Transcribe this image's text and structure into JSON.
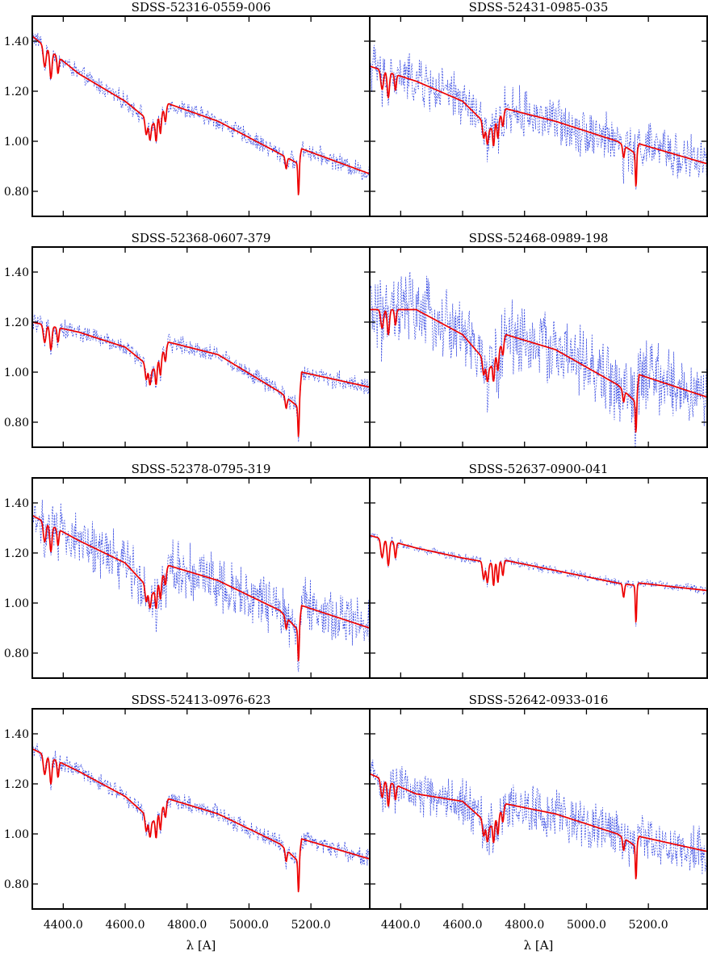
{
  "chart_data": {
    "type": "line",
    "layout": {
      "rows": 4,
      "cols": 2,
      "shared_x": true,
      "shared_y": true
    },
    "xlabel": "λ [A]",
    "xlim": [
      4300,
      5390
    ],
    "ylim": [
      0.7,
      1.5
    ],
    "xticks": [
      4400,
      4600,
      4800,
      5000,
      5200
    ],
    "xtick_labels": [
      "4400.0",
      "4600.0",
      "4800.0",
      "5000.0",
      "5200.0"
    ],
    "yticks": [
      0.8,
      1.0,
      1.2,
      1.4
    ],
    "ytick_labels": [
      "0.80",
      "1.00",
      "1.20",
      "1.40"
    ],
    "series_styles": [
      {
        "role": "observed",
        "color": "#2b3fe0",
        "style": "dotted"
      },
      {
        "role": "model",
        "color": "#ee0000",
        "style": "solid"
      }
    ],
    "panels": [
      {
        "title": "SDSS-52316-0559-006",
        "model_x": [
          4300,
          4450,
          4600,
          4690,
          4740,
          4900,
          5100,
          5160,
          5170,
          5390
        ],
        "model_y": [
          1.42,
          1.27,
          1.16,
          1.07,
          1.15,
          1.08,
          0.95,
          0.91,
          0.97,
          0.87
        ],
        "noise": 0.03
      },
      {
        "title": "SDSS-52431-0985-035",
        "model_x": [
          4300,
          4450,
          4600,
          4690,
          4740,
          4900,
          5100,
          5160,
          5170,
          5390
        ],
        "model_y": [
          1.3,
          1.24,
          1.16,
          1.05,
          1.13,
          1.08,
          1.0,
          0.95,
          0.99,
          0.91
        ],
        "noise": 0.08
      },
      {
        "title": "SDSS-52368-0607-379",
        "model_x": [
          4300,
          4450,
          4600,
          4690,
          4740,
          4900,
          5100,
          5160,
          5170,
          5390
        ],
        "model_y": [
          1.2,
          1.16,
          1.1,
          1.01,
          1.12,
          1.07,
          0.92,
          0.86,
          1.0,
          0.94
        ],
        "noise": 0.03
      },
      {
        "title": "SDSS-52468-0989-198",
        "model_x": [
          4300,
          4450,
          4600,
          4690,
          4740,
          4900,
          5100,
          5160,
          5170,
          5390
        ],
        "model_y": [
          1.25,
          1.25,
          1.15,
          1.02,
          1.15,
          1.09,
          0.95,
          0.88,
          0.99,
          0.9
        ],
        "noise": 0.12
      },
      {
        "title": "SDSS-52378-0795-319",
        "model_x": [
          4300,
          4450,
          4600,
          4690,
          4740,
          4900,
          5100,
          5160,
          5170,
          5390
        ],
        "model_y": [
          1.35,
          1.25,
          1.16,
          1.04,
          1.15,
          1.09,
          0.97,
          0.89,
          0.99,
          0.9
        ],
        "noise": 0.09
      },
      {
        "title": "SDSS-52637-0900-041",
        "model_x": [
          4300,
          4450,
          4600,
          4690,
          4740,
          4900,
          5100,
          5160,
          5170,
          5390
        ],
        "model_y": [
          1.27,
          1.22,
          1.18,
          1.16,
          1.17,
          1.13,
          1.08,
          1.07,
          1.08,
          1.05
        ],
        "noise": 0.015
      },
      {
        "title": "SDSS-52413-0976-623",
        "model_x": [
          4300,
          4450,
          4600,
          4690,
          4740,
          4900,
          5100,
          5160,
          5170,
          5390
        ],
        "model_y": [
          1.34,
          1.25,
          1.15,
          1.05,
          1.14,
          1.08,
          0.96,
          0.89,
          0.98,
          0.9
        ],
        "noise": 0.03
      },
      {
        "title": "SDSS-52642-0933-016",
        "model_x": [
          4300,
          4450,
          4600,
          4690,
          4740,
          4900,
          5100,
          5160,
          5170,
          5390
        ],
        "model_y": [
          1.24,
          1.16,
          1.13,
          1.03,
          1.12,
          1.08,
          1.0,
          0.95,
          0.99,
          0.93
        ],
        "noise": 0.08
      }
    ]
  }
}
